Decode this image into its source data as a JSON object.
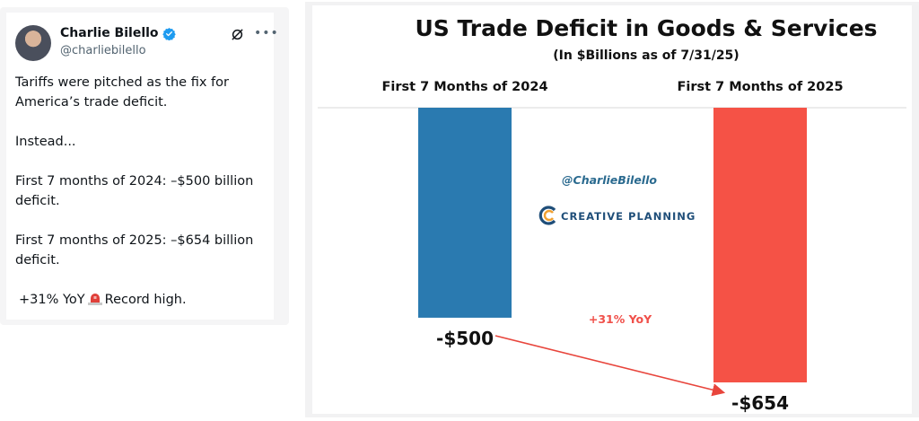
{
  "tweet": {
    "author_name": "Charlie Bilello",
    "handle": "@charliebilello",
    "body": [
      "Tariffs were pitched as the fix for America’s trade deficit.",
      "Instead...",
      "First 7 months of 2024: –$500 billion deficit.",
      "First 7 months of 2025: –$654 billion deficit."
    ],
    "last_line_a": "+31% YoY",
    "last_line_b": "Record high.",
    "icons": [
      "verified-badge-icon",
      "grok-icon",
      "more-icon",
      "siren-icon"
    ]
  },
  "watermark": {
    "handle": "@CharlieBilello",
    "brand": "CREATIVE PLANNING"
  },
  "annotation": "+31% YoY",
  "colors": {
    "bar_2024": "#2a7ab0",
    "bar_2025": "#f55246",
    "arrow": "#e8453c",
    "verified": "#1d9bf0"
  },
  "chart_data": {
    "type": "bar",
    "title": "US Trade Deficit in Goods & Services",
    "subtitle": "(In $Billions as of 7/31/25)",
    "categories": [
      "First 7 Months of 2024",
      "First 7 Months of 2025"
    ],
    "values": [
      -500,
      -654
    ],
    "value_labels": [
      "-$500",
      "-$654"
    ],
    "ylim": [
      -700,
      0
    ],
    "grid": false,
    "legend": "none"
  }
}
